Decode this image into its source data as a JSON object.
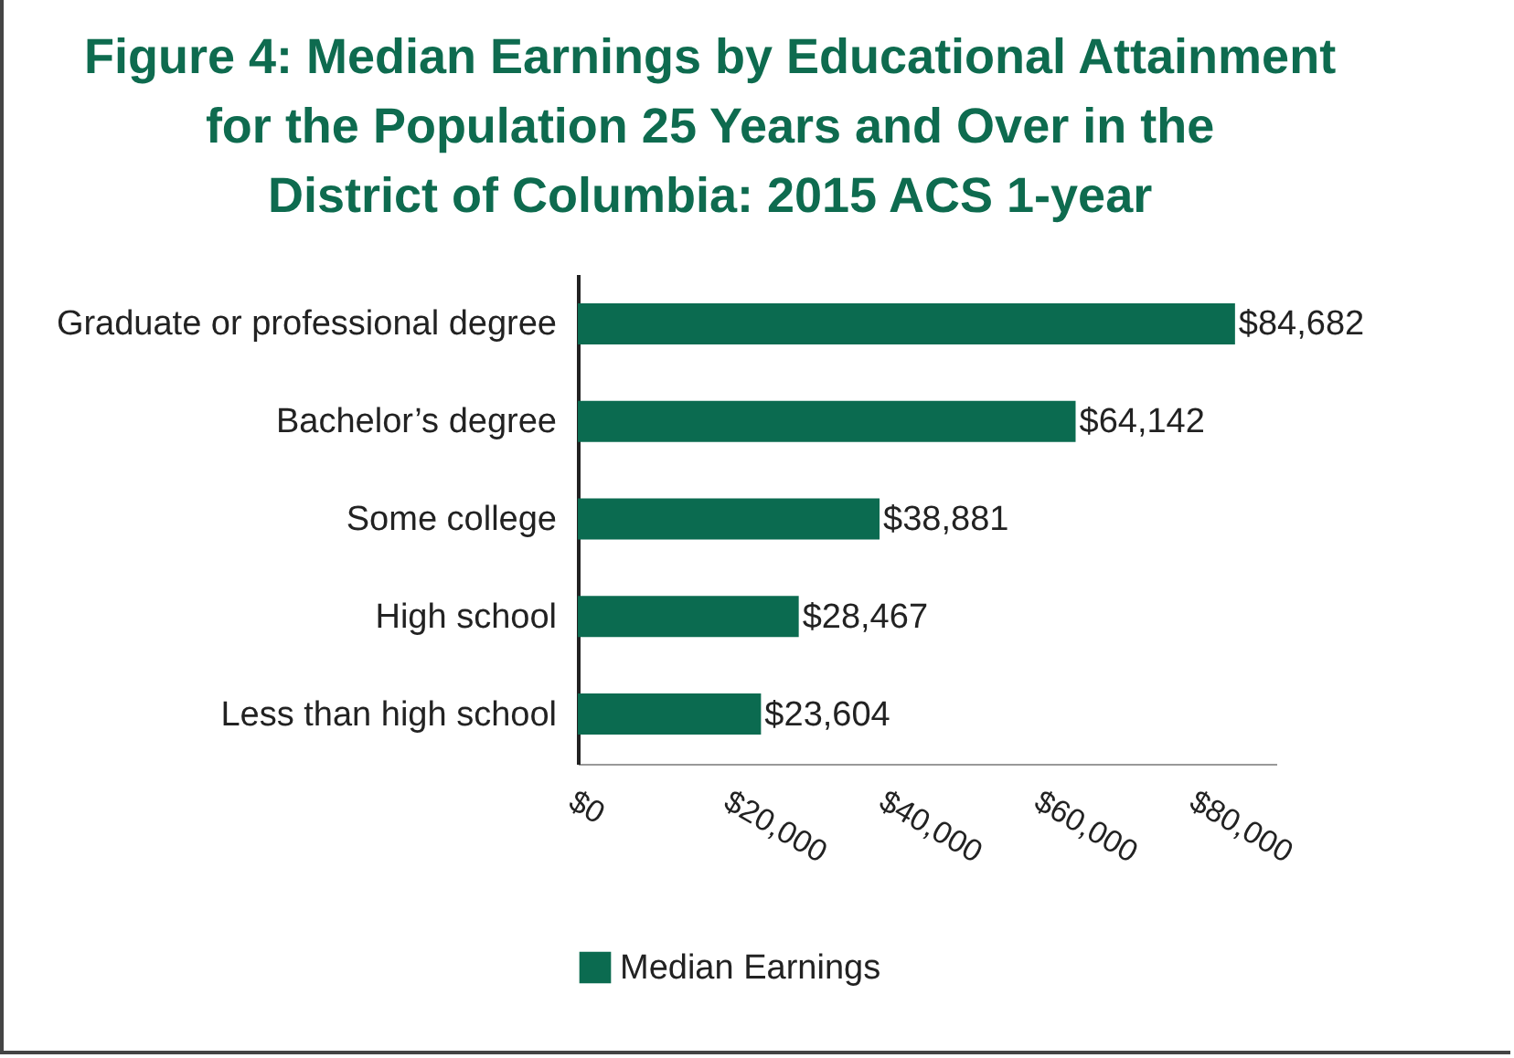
{
  "chart_data": {
    "type": "bar",
    "orientation": "horizontal",
    "title": "Figure 4: Median Earnings by Educational Attainment for the Population 25 Years and Over in the District of Columbia: 2015 ACS 1-year",
    "categories": [
      "Graduate or professional degree",
      "Bachelor’s degree",
      "Some college",
      "High school",
      "Less than high school"
    ],
    "series": [
      {
        "name": "Median Earnings",
        "color": "#0b6b50",
        "values": [
          84682,
          64142,
          38881,
          28467,
          23604
        ]
      }
    ],
    "value_labels": [
      "$84,682",
      "$64,142",
      "$38,881",
      "$28,467",
      "$23,604"
    ],
    "xlim": [
      0,
      90000
    ],
    "xticks": [
      {
        "value": 0,
        "label": "$0"
      },
      {
        "value": 20000,
        "label": "$20,000"
      },
      {
        "value": 40000,
        "label": "$40,000"
      },
      {
        "value": 60000,
        "label": "$60,000"
      },
      {
        "value": 80000,
        "label": "$80,000"
      }
    ],
    "grid": false,
    "legend": "bottom"
  }
}
